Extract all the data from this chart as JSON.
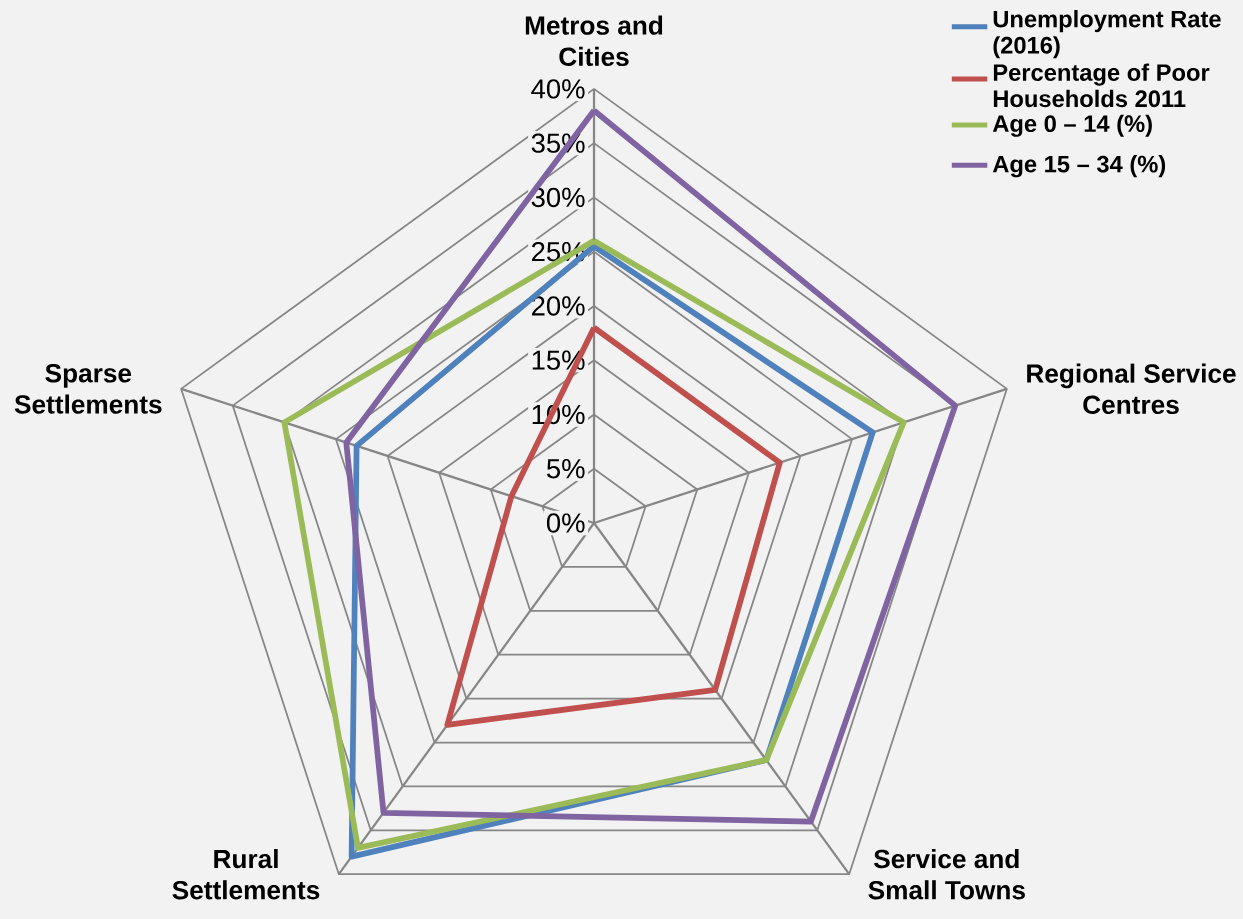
{
  "chart_data": {
    "type": "radar",
    "categories": [
      "Metros and Cities",
      "Regional Service Centres",
      "Service and Small Towns",
      "Rural Settlements",
      "Sparse Settlements"
    ],
    "series": [
      {
        "name": "Unemployment Rate (2016)",
        "color": "#4f81bd",
        "values": [
          25.5,
          27,
          27,
          38,
          23
        ]
      },
      {
        "name": "Percentage of Poor Households 2011",
        "color": "#c0504d",
        "values": [
          18,
          18,
          19,
          23,
          8
        ]
      },
      {
        "name": "Age 0 – 14 (%)",
        "color": "#9bbb59",
        "values": [
          26,
          30,
          27,
          37,
          30
        ]
      },
      {
        "name": "Age 15 – 34 (%)",
        "color": "#8064a2",
        "values": [
          38,
          35,
          34,
          33,
          24
        ]
      }
    ],
    "ylim": [
      0,
      40
    ],
    "yticks": [
      {
        "value": 0,
        "label": "0%"
      },
      {
        "value": 5,
        "label": "5%"
      },
      {
        "value": 10,
        "label": "10%"
      },
      {
        "value": 15,
        "label": "15%"
      },
      {
        "value": 20,
        "label": "20%"
      },
      {
        "value": 25,
        "label": "25%"
      },
      {
        "value": 30,
        "label": "30%"
      },
      {
        "value": 35,
        "label": "35%"
      },
      {
        "value": 40,
        "label": "40%"
      }
    ],
    "grid": true,
    "legend": "top right"
  }
}
